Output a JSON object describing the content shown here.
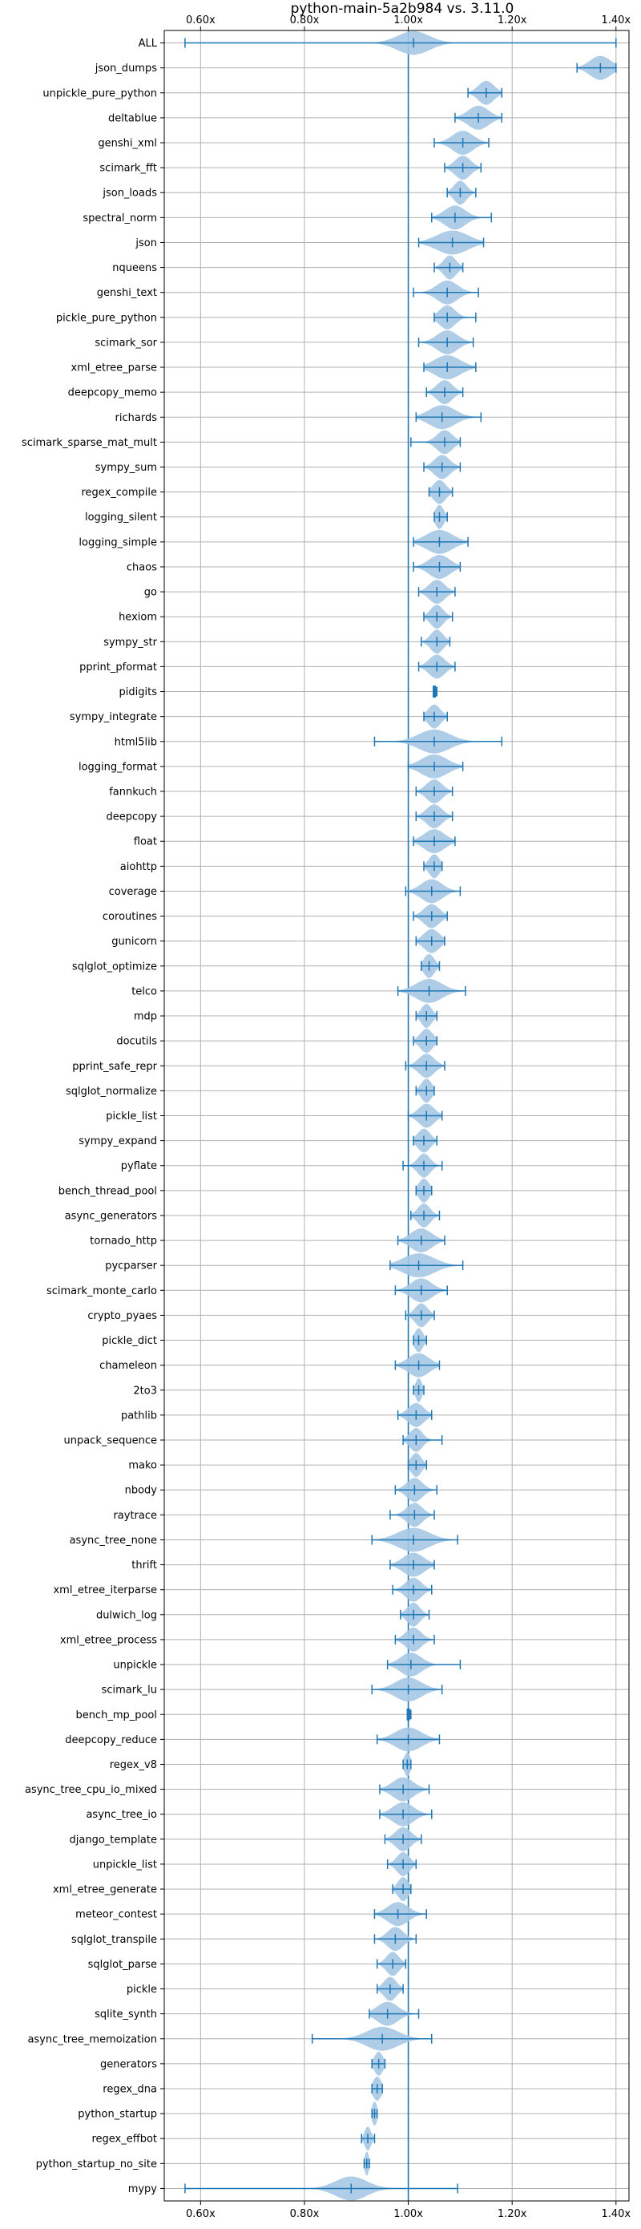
{
  "chart_data": {
    "type": "violin",
    "title": "python-main-5a2b984 vs. 3.11.0",
    "xlabel": "",
    "ylabel": "",
    "xlim": [
      0.53,
      1.425
    ],
    "x_ticks": [
      0.6,
      0.8,
      1.0,
      1.2,
      1.4
    ],
    "x_tick_labels": [
      "0.60x",
      "0.80x",
      "1.00x",
      "1.20x",
      "1.40x"
    ],
    "x_tick_positions": "top-and-bottom",
    "grid": true,
    "reference_line": 1.0,
    "colors": {
      "violin_fill": "#a6c8e4",
      "line": "#1f77b4",
      "grid": "#b0b0b0"
    },
    "benchmarks": [
      {
        "name": "ALL",
        "min": 0.57,
        "max": 1.4,
        "median": 1.01,
        "spread": 0.03
      },
      {
        "name": "json_dumps",
        "min": 1.325,
        "max": 1.4,
        "median": 1.37,
        "spread": 0.02
      },
      {
        "name": "unpickle_pure_python",
        "min": 1.115,
        "max": 1.18,
        "median": 1.15,
        "spread": 0.015
      },
      {
        "name": "deltablue",
        "min": 1.09,
        "max": 1.18,
        "median": 1.135,
        "spread": 0.02
      },
      {
        "name": "genshi_xml",
        "min": 1.05,
        "max": 1.155,
        "median": 1.105,
        "spread": 0.02
      },
      {
        "name": "scimark_fft",
        "min": 1.07,
        "max": 1.14,
        "median": 1.105,
        "spread": 0.015
      },
      {
        "name": "json_loads",
        "min": 1.075,
        "max": 1.13,
        "median": 1.1,
        "spread": 0.012
      },
      {
        "name": "spectral_norm",
        "min": 1.045,
        "max": 1.16,
        "median": 1.09,
        "spread": 0.02
      },
      {
        "name": "json",
        "min": 1.02,
        "max": 1.145,
        "median": 1.085,
        "spread": 0.03
      },
      {
        "name": "nqueens",
        "min": 1.05,
        "max": 1.105,
        "median": 1.08,
        "spread": 0.012
      },
      {
        "name": "genshi_text",
        "min": 1.01,
        "max": 1.135,
        "median": 1.075,
        "spread": 0.02
      },
      {
        "name": "pickle_pure_python",
        "min": 1.05,
        "max": 1.13,
        "median": 1.075,
        "spread": 0.015
      },
      {
        "name": "scimark_sor",
        "min": 1.02,
        "max": 1.125,
        "median": 1.075,
        "spread": 0.02
      },
      {
        "name": "xml_etree_parse",
        "min": 1.03,
        "max": 1.13,
        "median": 1.075,
        "spread": 0.025
      },
      {
        "name": "deepcopy_memo",
        "min": 1.035,
        "max": 1.105,
        "median": 1.07,
        "spread": 0.015
      },
      {
        "name": "richards",
        "min": 1.015,
        "max": 1.14,
        "median": 1.065,
        "spread": 0.025
      },
      {
        "name": "scimark_sparse_mat_mult",
        "min": 1.005,
        "max": 1.1,
        "median": 1.07,
        "spread": 0.015
      },
      {
        "name": "sympy_sum",
        "min": 1.03,
        "max": 1.1,
        "median": 1.065,
        "spread": 0.015
      },
      {
        "name": "regex_compile",
        "min": 1.04,
        "max": 1.085,
        "median": 1.06,
        "spread": 0.012
      },
      {
        "name": "logging_silent",
        "min": 1.05,
        "max": 1.075,
        "median": 1.06,
        "spread": 0.008
      },
      {
        "name": "logging_simple",
        "min": 1.01,
        "max": 1.115,
        "median": 1.06,
        "spread": 0.025
      },
      {
        "name": "chaos",
        "min": 1.01,
        "max": 1.1,
        "median": 1.06,
        "spread": 0.02
      },
      {
        "name": "go",
        "min": 1.02,
        "max": 1.09,
        "median": 1.055,
        "spread": 0.015
      },
      {
        "name": "hexiom",
        "min": 1.03,
        "max": 1.085,
        "median": 1.055,
        "spread": 0.012
      },
      {
        "name": "sympy_str",
        "min": 1.025,
        "max": 1.08,
        "median": 1.055,
        "spread": 0.012
      },
      {
        "name": "pprint_pformat",
        "min": 1.02,
        "max": 1.09,
        "median": 1.055,
        "spread": 0.015
      },
      {
        "name": "pidigits",
        "min": 1.05,
        "max": 1.055,
        "median": 1.053,
        "spread": 0.0
      },
      {
        "name": "sympy_integrate",
        "min": 1.03,
        "max": 1.075,
        "median": 1.05,
        "spread": 0.012
      },
      {
        "name": "html5lib",
        "min": 0.935,
        "max": 1.18,
        "median": 1.05,
        "spread": 0.03
      },
      {
        "name": "logging_format",
        "min": 1.0,
        "max": 1.105,
        "median": 1.05,
        "spread": 0.025
      },
      {
        "name": "fannkuch",
        "min": 1.015,
        "max": 1.085,
        "median": 1.05,
        "spread": 0.015
      },
      {
        "name": "deepcopy",
        "min": 1.015,
        "max": 1.085,
        "median": 1.05,
        "spread": 0.015
      },
      {
        "name": "float",
        "min": 1.01,
        "max": 1.09,
        "median": 1.05,
        "spread": 0.02
      },
      {
        "name": "aiohttp",
        "min": 1.03,
        "max": 1.065,
        "median": 1.05,
        "spread": 0.01
      },
      {
        "name": "coverage",
        "min": 0.995,
        "max": 1.1,
        "median": 1.045,
        "spread": 0.02
      },
      {
        "name": "coroutines",
        "min": 1.01,
        "max": 1.075,
        "median": 1.045,
        "spread": 0.015
      },
      {
        "name": "gunicorn",
        "min": 1.015,
        "max": 1.07,
        "median": 1.045,
        "spread": 0.015
      },
      {
        "name": "sqlglot_optimize",
        "min": 1.025,
        "max": 1.06,
        "median": 1.04,
        "spread": 0.01
      },
      {
        "name": "telco",
        "min": 0.98,
        "max": 1.11,
        "median": 1.04,
        "spread": 0.025
      },
      {
        "name": "mdp",
        "min": 1.015,
        "max": 1.055,
        "median": 1.035,
        "spread": 0.01
      },
      {
        "name": "docutils",
        "min": 1.01,
        "max": 1.055,
        "median": 1.035,
        "spread": 0.012
      },
      {
        "name": "pprint_safe_repr",
        "min": 0.995,
        "max": 1.07,
        "median": 1.035,
        "spread": 0.015
      },
      {
        "name": "sqlglot_normalize",
        "min": 1.015,
        "max": 1.05,
        "median": 1.035,
        "spread": 0.01
      },
      {
        "name": "pickle_list",
        "min": 1.0,
        "max": 1.065,
        "median": 1.035,
        "spread": 0.015
      },
      {
        "name": "sympy_expand",
        "min": 1.01,
        "max": 1.055,
        "median": 1.03,
        "spread": 0.012
      },
      {
        "name": "pyflate",
        "min": 0.99,
        "max": 1.065,
        "median": 1.03,
        "spread": 0.012
      },
      {
        "name": "bench_thread_pool",
        "min": 1.015,
        "max": 1.045,
        "median": 1.03,
        "spread": 0.01
      },
      {
        "name": "async_generators",
        "min": 1.005,
        "max": 1.06,
        "median": 1.03,
        "spread": 0.012
      },
      {
        "name": "tornado_http",
        "min": 0.98,
        "max": 1.07,
        "median": 1.025,
        "spread": 0.02
      },
      {
        "name": "pycparser",
        "min": 0.965,
        "max": 1.105,
        "median": 1.02,
        "spread": 0.03
      },
      {
        "name": "scimark_monte_carlo",
        "min": 0.975,
        "max": 1.075,
        "median": 1.025,
        "spread": 0.02
      },
      {
        "name": "crypto_pyaes",
        "min": 0.995,
        "max": 1.05,
        "median": 1.025,
        "spread": 0.012
      },
      {
        "name": "pickle_dict",
        "min": 1.01,
        "max": 1.035,
        "median": 1.02,
        "spread": 0.008
      },
      {
        "name": "chameleon",
        "min": 0.975,
        "max": 1.06,
        "median": 1.02,
        "spread": 0.02
      },
      {
        "name": "2to3",
        "min": 1.01,
        "max": 1.03,
        "median": 1.02,
        "spread": 0.006
      },
      {
        "name": "pathlib",
        "min": 0.98,
        "max": 1.045,
        "median": 1.015,
        "spread": 0.015
      },
      {
        "name": "unpack_sequence",
        "min": 0.99,
        "max": 1.065,
        "median": 1.015,
        "spread": 0.012
      },
      {
        "name": "mako",
        "min": 1.0,
        "max": 1.035,
        "median": 1.015,
        "spread": 0.01
      },
      {
        "name": "nbody",
        "min": 0.975,
        "max": 1.055,
        "median": 1.012,
        "spread": 0.015
      },
      {
        "name": "raytrace",
        "min": 0.965,
        "max": 1.05,
        "median": 1.012,
        "spread": 0.015
      },
      {
        "name": "async_tree_none",
        "min": 0.93,
        "max": 1.095,
        "median": 1.01,
        "spread": 0.03
      },
      {
        "name": "thrift",
        "min": 0.965,
        "max": 1.05,
        "median": 1.01,
        "spread": 0.02
      },
      {
        "name": "xml_etree_iterparse",
        "min": 0.97,
        "max": 1.045,
        "median": 1.01,
        "spread": 0.015
      },
      {
        "name": "dulwich_log",
        "min": 0.985,
        "max": 1.04,
        "median": 1.01,
        "spread": 0.012
      },
      {
        "name": "xml_etree_process",
        "min": 0.975,
        "max": 1.05,
        "median": 1.01,
        "spread": 0.015
      },
      {
        "name": "unpickle",
        "min": 0.96,
        "max": 1.1,
        "median": 1.005,
        "spread": 0.02
      },
      {
        "name": "scimark_lu",
        "min": 0.93,
        "max": 1.065,
        "median": 1.0,
        "spread": 0.025
      },
      {
        "name": "bench_mp_pool",
        "min": 1.0,
        "max": 1.005,
        "median": 1.003,
        "spread": 0.0
      },
      {
        "name": "deepcopy_reduce",
        "min": 0.94,
        "max": 1.06,
        "median": 1.0,
        "spread": 0.025
      },
      {
        "name": "regex_v8",
        "min": 0.99,
        "max": 1.005,
        "median": 0.998,
        "spread": 0.006
      },
      {
        "name": "async_tree_cpu_io_mixed",
        "min": 0.945,
        "max": 1.04,
        "median": 0.99,
        "spread": 0.02
      },
      {
        "name": "async_tree_io",
        "min": 0.945,
        "max": 1.045,
        "median": 0.99,
        "spread": 0.02
      },
      {
        "name": "django_template",
        "min": 0.955,
        "max": 1.025,
        "median": 0.99,
        "spread": 0.015
      },
      {
        "name": "unpickle_list",
        "min": 0.96,
        "max": 1.015,
        "median": 0.99,
        "spread": 0.012
      },
      {
        "name": "xml_etree_generate",
        "min": 0.97,
        "max": 1.005,
        "median": 0.99,
        "spread": 0.01
      },
      {
        "name": "meteor_contest",
        "min": 0.935,
        "max": 1.035,
        "median": 0.98,
        "spread": 0.02
      },
      {
        "name": "sqlglot_transpile",
        "min": 0.935,
        "max": 1.015,
        "median": 0.975,
        "spread": 0.015
      },
      {
        "name": "sqlglot_parse",
        "min": 0.94,
        "max": 0.995,
        "median": 0.97,
        "spread": 0.012
      },
      {
        "name": "pickle",
        "min": 0.94,
        "max": 0.99,
        "median": 0.965,
        "spread": 0.012
      },
      {
        "name": "sqlite_synth",
        "min": 0.925,
        "max": 1.02,
        "median": 0.96,
        "spread": 0.02
      },
      {
        "name": "async_tree_memoization",
        "min": 0.815,
        "max": 1.045,
        "median": 0.95,
        "spread": 0.03
      },
      {
        "name": "generators",
        "min": 0.93,
        "max": 0.955,
        "median": 0.943,
        "spread": 0.008
      },
      {
        "name": "regex_dna",
        "min": 0.93,
        "max": 0.95,
        "median": 0.94,
        "spread": 0.008
      },
      {
        "name": "python_startup",
        "min": 0.93,
        "max": 0.94,
        "median": 0.935,
        "spread": 0.005
      },
      {
        "name": "regex_effbot",
        "min": 0.91,
        "max": 0.935,
        "median": 0.922,
        "spread": 0.006
      },
      {
        "name": "python_startup_no_site",
        "min": 0.915,
        "max": 0.925,
        "median": 0.92,
        "spread": 0.004
      },
      {
        "name": "mypy",
        "min": 0.57,
        "max": 1.095,
        "median": 0.89,
        "spread": 0.03
      }
    ]
  }
}
